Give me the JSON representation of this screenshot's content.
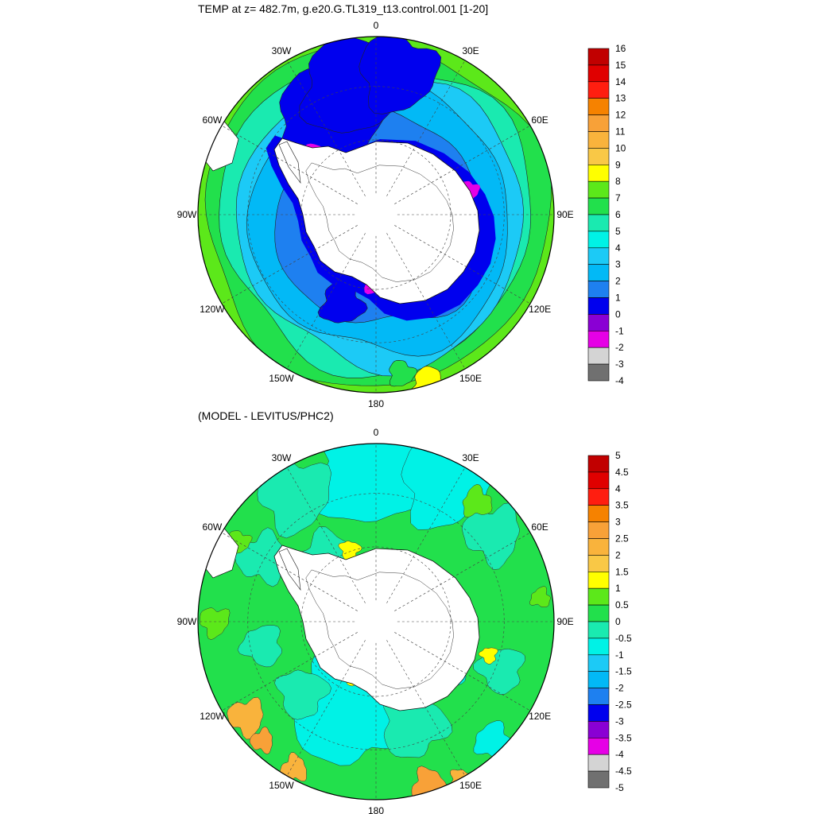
{
  "panels": [
    {
      "title": "TEMP at z= 482.7m, g.e20.G.TL319_t13.control.001 [1-20]",
      "map": {
        "projection": "south-polar-stereographic",
        "longitude_labels": [
          "0",
          "30E",
          "60E",
          "90E",
          "120E",
          "150E",
          "180",
          "150W",
          "120W",
          "90W",
          "60W",
          "30W"
        ]
      },
      "colorbar": {
        "labels": [
          "16",
          "15",
          "14",
          "13",
          "12",
          "11",
          "10",
          "9",
          "8",
          "7",
          "6",
          "5",
          "4",
          "3",
          "2",
          "1",
          "0",
          "-1",
          "-2",
          "-3",
          "-4"
        ],
        "colors": [
          "#c10000",
          "#e00000",
          "#ff1e10",
          "#f68200",
          "#f8a138",
          "#f9b33c",
          "#f9c846",
          "#ffff00",
          "#5ce81a",
          "#22e04c",
          "#1aeab0",
          "#00f2e6",
          "#1ccaf6",
          "#02b9f6",
          "#1e80f0",
          "#0000ee",
          "#8a00d4",
          "#e600e6",
          "#d4d4d4",
          "#707070"
        ]
      },
      "field_colors": {
        "land": "#ffffff",
        "shelf_cold": "#e600e6",
        "shelf_minus1": "#8a00d4",
        "zone_0_1": "#0000ee",
        "zone_1_2": "#1e80f0",
        "zone_2_3": "#02b9f6",
        "zone_3_4": "#1ccaf6",
        "zone_4_5": "#00f2e6",
        "zone_5_6": "#1aeab0",
        "zone_6_7": "#22e04c",
        "zone_7_8": "#5ce81a",
        "zone_8_9": "#ffff00"
      }
    },
    {
      "title": "(MODEL - LEVITUS/PHC2)",
      "map": {
        "projection": "south-polar-stereographic",
        "longitude_labels": [
          "0",
          "30E",
          "60E",
          "90E",
          "120E",
          "150E",
          "180",
          "150W",
          "120W",
          "90W",
          "60W",
          "30W"
        ]
      },
      "colorbar": {
        "labels": [
          "5",
          "4.5",
          "4",
          "3.5",
          "3",
          "2.5",
          "2",
          "1.5",
          "1",
          "0.5",
          "0",
          "-0.5",
          "-1",
          "-1.5",
          "-2",
          "-2.5",
          "-3",
          "-3.5",
          "-4",
          "-4.5",
          "-5"
        ],
        "colors": [
          "#c10000",
          "#e00000",
          "#ff1e10",
          "#f68200",
          "#f8a138",
          "#f9b33c",
          "#f9c846",
          "#ffff00",
          "#5ce81a",
          "#22e04c",
          "#1aeab0",
          "#00f2e6",
          "#1ccaf6",
          "#02b9f6",
          "#1e80f0",
          "#0000ee",
          "#8a00d4",
          "#e600e6",
          "#d4d4d4",
          "#707070"
        ]
      },
      "field_colors": {
        "land": "#ffffff",
        "base": "#22e04c",
        "cool": "#1aeab0",
        "cooler": "#00f2e6",
        "cold": "#1ccaf6",
        "warm": "#5ce81a",
        "warmer": "#ffff00",
        "hot": "#f9b33c",
        "hotter": "#f8a138"
      }
    }
  ]
}
